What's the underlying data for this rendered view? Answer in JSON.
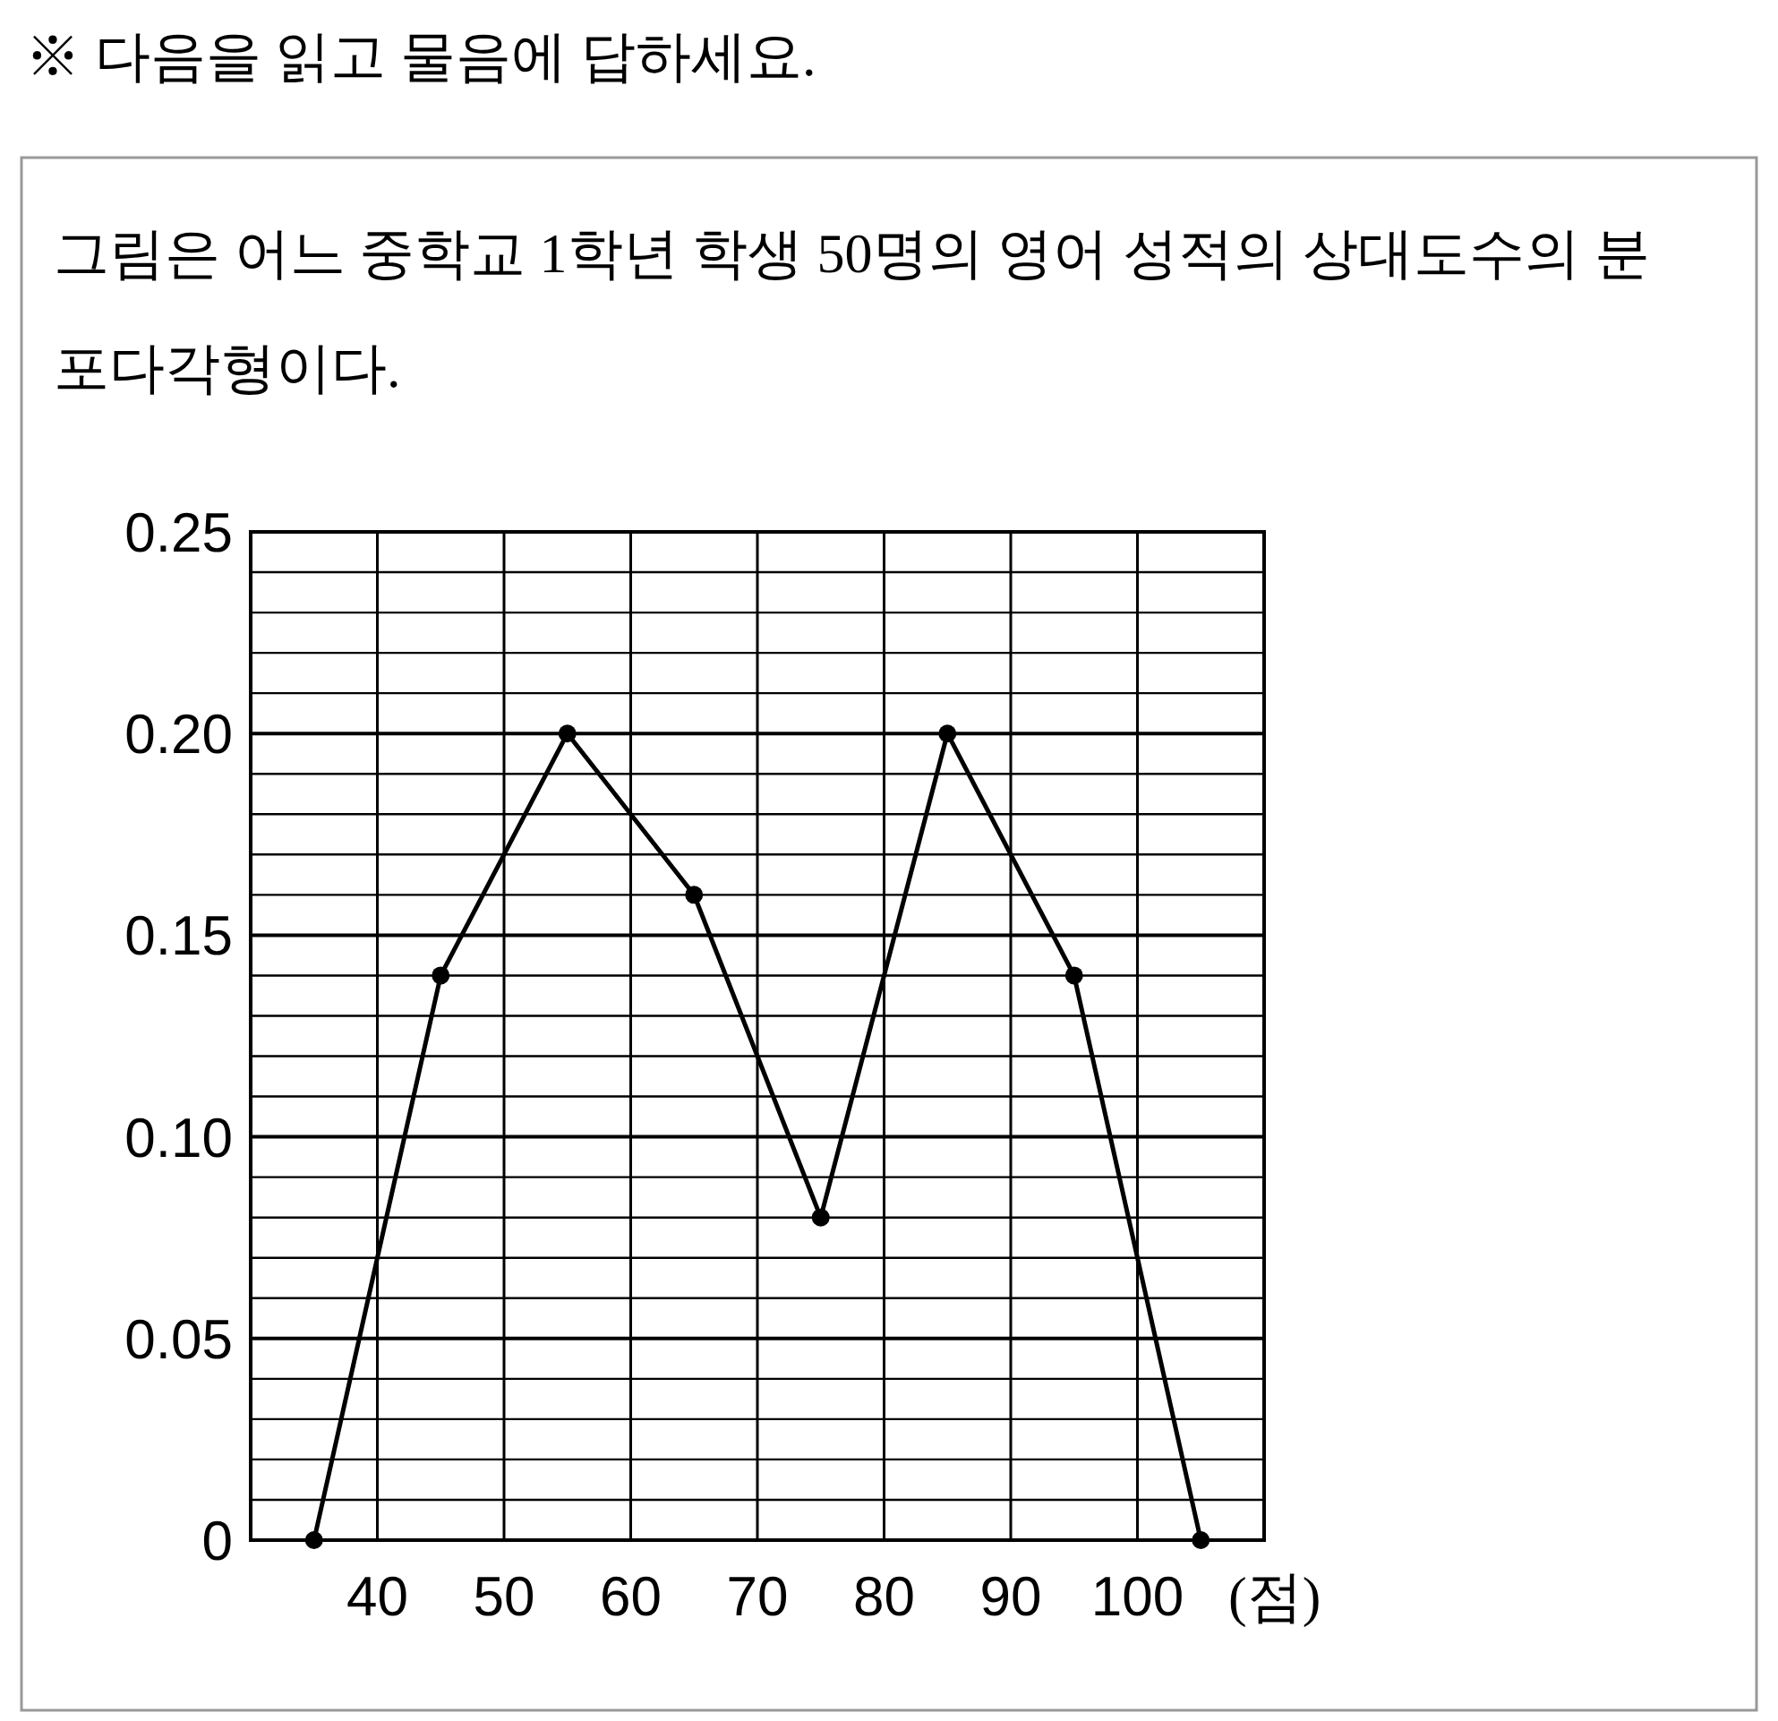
{
  "chart_data": {
    "type": "line",
    "title": "※ 다음을 읽고 물음에 답하세요.",
    "subtitle": "그림은 어느 중학교 1학년 학생 50명의 영어 성적의 상대도수의 분포다각형이다.",
    "xlabel": "(점)",
    "x": [
      35,
      45,
      55,
      65,
      75,
      85,
      95,
      105
    ],
    "values": [
      0,
      0.14,
      0.2,
      0.16,
      0.08,
      0.2,
      0.14,
      0
    ],
    "color": "#000000",
    "marker": "circle",
    "line_style": "solid",
    "grid": true,
    "xlim": [
      30,
      110
    ],
    "ylim": [
      0,
      0.25
    ],
    "xticks": [
      40,
      50,
      60,
      70,
      80,
      90,
      100,
      {
        "value": 110,
        "label": null
      }
    ],
    "yticks": [
      0,
      {
        "value": 0.01,
        "label": null
      },
      {
        "value": 0.02,
        "label": null
      },
      {
        "value": 0.03,
        "label": null
      },
      {
        "value": 0.04,
        "label": null
      },
      {
        "value": 0.05,
        "label": "0.05"
      },
      {
        "value": 0.06,
        "label": null
      },
      {
        "value": 0.07,
        "label": null
      },
      {
        "value": 0.08,
        "label": null
      },
      {
        "value": 0.09,
        "label": null
      },
      {
        "value": 0.1,
        "label": "0.10"
      },
      {
        "value": 0.11,
        "label": null
      },
      {
        "value": 0.12,
        "label": null
      },
      {
        "value": 0.13,
        "label": null
      },
      {
        "value": 0.14,
        "label": null
      },
      {
        "value": 0.15,
        "label": "0.15"
      },
      {
        "value": 0.16,
        "label": null
      },
      {
        "value": 0.17,
        "label": null
      },
      {
        "value": 0.18,
        "label": null
      },
      {
        "value": 0.19,
        "label": null
      },
      {
        "value": 0.2,
        "label": "0.20"
      },
      {
        "value": 0.21,
        "label": null
      },
      {
        "value": 0.22,
        "label": null
      },
      {
        "value": 0.23,
        "label": null
      },
      {
        "value": 0.24,
        "label": null
      },
      {
        "value": 0.25,
        "label": "0.25"
      }
    ]
  }
}
